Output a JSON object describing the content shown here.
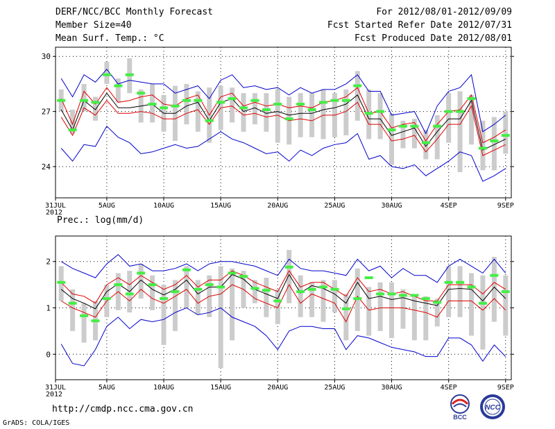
{
  "header": {
    "left": [
      "DERF/NCC/BCC Monthly Forecast",
      "Member Size=40",
      "Mean Surf. Temp.: °C"
    ],
    "right": [
      "For 2012/08/01-2012/09/09",
      "Fcst Started Refer Date 2012/07/31",
      "Fcst Produced Date 2012/08/01"
    ]
  },
  "precip_label": "Prec.: log(mm/d)",
  "footer": {
    "url": "http://cmdp.ncc.cma.gov.cn",
    "credit": "GrADS: COLA/IGES"
  },
  "logos": {
    "bcc": "BCC",
    "ncc": "NCC"
  },
  "colors": {
    "blue": "#0000cc",
    "red": "#dd0000",
    "black": "#000000",
    "gray": "#cccccc",
    "green": "#44ee44"
  },
  "chart_data": [
    {
      "type": "line",
      "title": "Mean Surf. Temp.: °C",
      "ylim": [
        22.3,
        30.5
      ],
      "yticks": [
        24,
        27,
        30
      ],
      "ytick_labels": [
        "24",
        "27",
        "30"
      ],
      "xlim": [
        0.5,
        40.5
      ],
      "xticks": [
        0,
        5,
        10,
        15,
        20,
        25,
        30,
        35,
        40
      ],
      "xtick_labels": [
        "31JUL",
        "5AUG",
        "10AUG",
        "15AUG",
        "20AUG",
        "25AUG",
        "30AUG",
        "4SEP",
        "9SEP"
      ],
      "xtick_sublabel": "2012",
      "days": [
        1,
        2,
        3,
        4,
        5,
        6,
        7,
        8,
        9,
        10,
        11,
        12,
        13,
        14,
        15,
        16,
        17,
        18,
        19,
        20,
        21,
        22,
        23,
        24,
        25,
        26,
        27,
        28,
        29,
        30,
        31,
        32,
        33,
        34,
        35,
        36,
        37,
        38,
        39,
        40
      ],
      "series": [
        {
          "name": "max",
          "color": "blue",
          "values": [
            28.8,
            27.8,
            29.0,
            28.6,
            29.3,
            28.5,
            28.7,
            28.6,
            28.5,
            28.5,
            28.0,
            28.2,
            28.4,
            27.7,
            28.7,
            29.0,
            28.3,
            28.4,
            28.2,
            28.3,
            27.9,
            28.3,
            28.0,
            28.2,
            28.2,
            28.5,
            29.0,
            28.1,
            28.1,
            26.8,
            26.9,
            27.0,
            25.8,
            27.3,
            28.1,
            28.3,
            29.0,
            25.9,
            26.3,
            26.8
          ]
        },
        {
          "name": "upper",
          "color": "red",
          "values": [
            27.7,
            26.3,
            28.1,
            27.4,
            28.3,
            27.5,
            27.6,
            27.8,
            27.9,
            27.4,
            27.3,
            27.7,
            27.9,
            26.8,
            27.8,
            28.0,
            27.3,
            27.5,
            27.3,
            27.4,
            27.2,
            27.3,
            27.2,
            27.5,
            27.6,
            27.8,
            28.3,
            26.9,
            27.0,
            26.1,
            26.3,
            26.4,
            25.4,
            26.3,
            27.0,
            27.1,
            27.9,
            25.3,
            25.6,
            26.0
          ]
        },
        {
          "name": "mean",
          "color": "black",
          "values": [
            27.1,
            26.0,
            27.6,
            27.1,
            28.0,
            27.2,
            27.2,
            27.3,
            27.4,
            26.9,
            26.9,
            27.3,
            27.5,
            26.5,
            27.5,
            27.7,
            27.0,
            27.2,
            26.9,
            27.0,
            26.8,
            26.9,
            26.9,
            27.1,
            27.2,
            27.4,
            27.9,
            26.6,
            26.6,
            25.7,
            25.9,
            26.1,
            25.1,
            25.9,
            26.6,
            26.6,
            27.6,
            24.9,
            25.2,
            25.5
          ]
        },
        {
          "name": "lower",
          "color": "red",
          "values": [
            26.7,
            25.7,
            27.2,
            26.8,
            27.6,
            26.9,
            26.9,
            27.0,
            26.9,
            26.6,
            26.6,
            26.9,
            27.1,
            26.3,
            27.2,
            27.3,
            26.8,
            26.9,
            26.7,
            26.8,
            26.5,
            26.6,
            26.5,
            26.8,
            26.8,
            27.0,
            27.5,
            26.3,
            26.3,
            25.4,
            25.5,
            25.7,
            24.8,
            25.5,
            26.3,
            26.3,
            27.3,
            24.6,
            24.9,
            25.2
          ]
        },
        {
          "name": "min",
          "color": "blue",
          "values": [
            25.0,
            24.3,
            25.2,
            25.1,
            26.2,
            25.6,
            25.3,
            24.7,
            24.8,
            25.0,
            25.2,
            25.0,
            25.1,
            25.5,
            25.9,
            25.5,
            25.3,
            25.0,
            24.7,
            24.8,
            24.3,
            24.9,
            24.6,
            25.0,
            25.2,
            25.3,
            25.8,
            24.4,
            24.6,
            24.0,
            23.9,
            24.1,
            23.5,
            23.9,
            24.3,
            24.8,
            24.6,
            23.2,
            23.5,
            23.9
          ]
        },
        {
          "name": "observed",
          "color": "green",
          "values": [
            27.6,
            26.0,
            27.6,
            27.5,
            29.0,
            28.4,
            29.0,
            28.0,
            27.4,
            27.2,
            27.3,
            27.6,
            27.6,
            26.5,
            27.5,
            27.7,
            27.2,
            27.6,
            27.1,
            27.4,
            26.6,
            27.4,
            27.1,
            27.5,
            27.6,
            27.6,
            28.4,
            26.9,
            27.0,
            26.0,
            26.2,
            26.2,
            25.3,
            26.2,
            27.0,
            27.0,
            27.7,
            25.0,
            25.4,
            25.7
          ]
        }
      ],
      "boxes": {
        "low": [
          27.0,
          25.8,
          27.0,
          26.5,
          28.5,
          27.5,
          28.0,
          26.4,
          26.4,
          25.9,
          25.4,
          26.3,
          25.9,
          25.3,
          26.0,
          26.4,
          25.9,
          26.3,
          25.9,
          25.3,
          25.2,
          25.6,
          25.6,
          25.5,
          25.6,
          25.7,
          26.5,
          25.5,
          25.5,
          24.1,
          25.0,
          25.0,
          24.4,
          24.4,
          25.3,
          23.7,
          25.2,
          23.8,
          23.8,
          24.7
        ],
        "high": [
          28.2,
          27.1,
          28.5,
          27.8,
          29.7,
          28.8,
          29.9,
          28.2,
          28.5,
          27.9,
          28.4,
          28.5,
          28.1,
          28.3,
          28.4,
          28.3,
          28.0,
          28.0,
          28.0,
          28.2,
          27.8,
          28.0,
          28.0,
          28.2,
          28.0,
          28.2,
          29.2,
          28.2,
          28.0,
          26.9,
          26.5,
          26.6,
          26.0,
          26.8,
          28.0,
          28.1,
          27.9,
          26.5,
          26.7,
          27.0
        ]
      }
    },
    {
      "type": "line",
      "title": "Prec.: log(mm/d)",
      "ylim": [
        -0.55,
        2.55
      ],
      "yticks": [
        0,
        1,
        2
      ],
      "ytick_labels": [
        "0",
        "1",
        "2"
      ],
      "xlim": [
        0.5,
        40.5
      ],
      "xticks": [
        0,
        5,
        10,
        15,
        20,
        25,
        30,
        35,
        40
      ],
      "xtick_labels": [
        "31JUL",
        "5AUG",
        "10AUG",
        "15AUG",
        "20AUG",
        "25AUG",
        "30AUG",
        "4SEP",
        "9SEP"
      ],
      "xtick_sublabel": "2012",
      "days": [
        1,
        2,
        3,
        4,
        5,
        6,
        7,
        8,
        9,
        10,
        11,
        12,
        13,
        14,
        15,
        16,
        17,
        18,
        19,
        20,
        21,
        22,
        23,
        24,
        25,
        26,
        27,
        28,
        29,
        30,
        31,
        32,
        33,
        34,
        35,
        36,
        37,
        38,
        39,
        40
      ],
      "series": [
        {
          "name": "max",
          "color": "blue",
          "values": [
            2.0,
            1.85,
            1.75,
            1.65,
            1.95,
            2.15,
            1.9,
            1.95,
            1.8,
            1.8,
            1.85,
            1.95,
            1.8,
            1.95,
            2.0,
            2.0,
            1.95,
            1.9,
            1.8,
            1.7,
            2.05,
            1.85,
            1.8,
            1.8,
            1.75,
            1.7,
            2.05,
            1.8,
            1.9,
            1.65,
            1.85,
            1.7,
            1.7,
            1.55,
            1.9,
            2.05,
            1.9,
            1.75,
            2.05,
            1.75
          ]
        },
        {
          "name": "upper",
          "color": "red",
          "values": [
            1.55,
            1.3,
            1.25,
            1.1,
            1.5,
            1.65,
            1.5,
            1.7,
            1.55,
            1.4,
            1.5,
            1.7,
            1.45,
            1.6,
            1.6,
            1.8,
            1.7,
            1.55,
            1.45,
            1.35,
            1.8,
            1.45,
            1.55,
            1.55,
            1.4,
            1.25,
            1.65,
            1.35,
            1.4,
            1.3,
            1.35,
            1.25,
            1.15,
            1.15,
            1.5,
            1.5,
            1.5,
            1.3,
            1.55,
            1.4
          ]
        },
        {
          "name": "mean",
          "color": "black",
          "values": [
            1.4,
            1.2,
            1.1,
            0.98,
            1.35,
            1.52,
            1.35,
            1.6,
            1.4,
            1.28,
            1.4,
            1.6,
            1.3,
            1.45,
            1.45,
            1.72,
            1.62,
            1.4,
            1.3,
            1.2,
            1.72,
            1.32,
            1.48,
            1.42,
            1.3,
            1.1,
            1.55,
            1.2,
            1.25,
            1.18,
            1.22,
            1.15,
            1.1,
            1.05,
            1.4,
            1.42,
            1.4,
            1.15,
            1.45,
            1.2
          ]
        },
        {
          "name": "lower",
          "color": "red",
          "values": [
            1.15,
            1.0,
            0.9,
            0.8,
            1.15,
            1.35,
            1.15,
            1.4,
            1.2,
            1.1,
            1.25,
            1.4,
            1.1,
            1.25,
            1.3,
            1.5,
            1.4,
            1.2,
            1.1,
            1.0,
            1.5,
            1.1,
            1.3,
            1.2,
            1.1,
            0.7,
            1.25,
            0.95,
            1.0,
            1.0,
            1.0,
            0.95,
            0.9,
            0.8,
            1.15,
            1.15,
            1.15,
            0.95,
            1.2,
            0.95
          ]
        },
        {
          "name": "min",
          "color": "blue",
          "values": [
            0.22,
            -0.2,
            -0.25,
            0.1,
            0.6,
            0.8,
            0.55,
            0.75,
            0.7,
            0.75,
            0.9,
            1.0,
            0.85,
            0.9,
            1.0,
            0.8,
            0.7,
            0.6,
            0.4,
            0.1,
            0.5,
            0.6,
            0.6,
            0.55,
            0.55,
            0.1,
            0.4,
            0.35,
            0.25,
            0.15,
            0.1,
            0.05,
            -0.05,
            -0.05,
            0.35,
            0.35,
            0.2,
            -0.15,
            0.2,
            -0.05
          ]
        },
        {
          "name": "observed",
          "color": "green",
          "values": [
            1.55,
            1.1,
            0.83,
            0.72,
            1.2,
            1.5,
            1.3,
            1.75,
            1.5,
            1.2,
            1.35,
            1.82,
            1.4,
            1.5,
            1.45,
            1.75,
            1.68,
            1.42,
            1.38,
            1.15,
            1.88,
            1.35,
            1.4,
            1.45,
            1.4,
            0.98,
            1.2,
            1.65,
            1.3,
            1.3,
            1.27,
            1.27,
            1.2,
            1.12,
            1.55,
            1.55,
            1.45,
            1.1,
            1.7,
            1.35
          ]
        }
      ],
      "boxes": {
        "low": [
          1.15,
          0.5,
          0.25,
          0.3,
          0.8,
          0.95,
          0.9,
          1.2,
          0.95,
          0.2,
          0.5,
          1.0,
          0.85,
          0.8,
          -0.3,
          0.3,
          1.0,
          1.1,
          0.8,
          0.65,
          1.1,
          0.8,
          0.8,
          0.7,
          0.9,
          0.3,
          0.5,
          0.4,
          0.5,
          0.35,
          0.55,
          0.3,
          0.3,
          0.6,
          0.8,
          0.8,
          0.4,
          0.1,
          0.7,
          0.4
        ],
        "high": [
          1.9,
          1.4,
          1.1,
          1.15,
          1.5,
          1.75,
          1.8,
          1.95,
          1.7,
          1.5,
          1.6,
          1.9,
          1.6,
          1.7,
          1.9,
          1.85,
          1.8,
          1.6,
          1.65,
          1.4,
          2.25,
          1.7,
          1.55,
          1.6,
          1.6,
          1.3,
          1.85,
          1.45,
          1.55,
          1.55,
          1.4,
          1.3,
          1.25,
          1.2,
          1.9,
          1.9,
          1.75,
          1.7,
          2.1,
          1.7
        ]
      }
    }
  ]
}
